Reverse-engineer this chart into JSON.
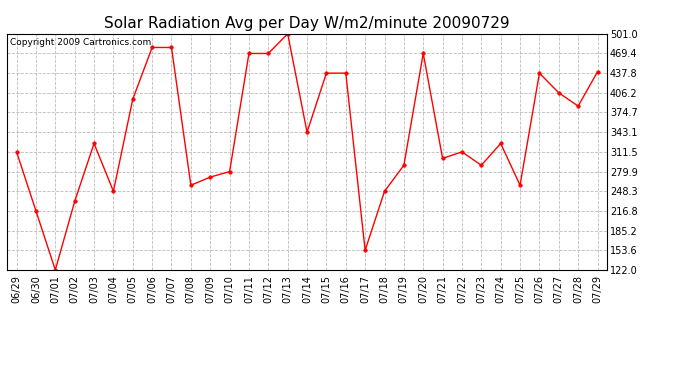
{
  "title": "Solar Radiation Avg per Day W/m2/minute 20090729",
  "copyright": "Copyright 2009 Cartronics.com",
  "dates": [
    "06/29",
    "06/30",
    "07/01",
    "07/02",
    "07/03",
    "07/04",
    "07/05",
    "07/06",
    "07/07",
    "07/08",
    "07/09",
    "07/10",
    "07/11",
    "07/12",
    "07/13",
    "07/14",
    "07/15",
    "07/16",
    "07/17",
    "07/18",
    "07/19",
    "07/20",
    "07/21",
    "07/22",
    "07/23",
    "07/24",
    "07/25",
    "07/26",
    "07/27",
    "07/28",
    "07/29"
  ],
  "values": [
    311.5,
    216.8,
    122.0,
    232.0,
    325.0,
    248.3,
    396.0,
    479.0,
    479.0,
    258.0,
    271.0,
    279.9,
    469.4,
    469.4,
    501.0,
    343.1,
    437.8,
    437.8,
    153.6,
    248.3,
    290.0,
    469.4,
    301.0,
    311.5,
    290.0,
    325.0,
    258.0,
    437.8,
    406.2,
    385.0,
    440.0
  ],
  "ylim": [
    122.0,
    501.0
  ],
  "yticks": [
    122.0,
    153.6,
    185.2,
    216.8,
    248.3,
    279.9,
    311.5,
    343.1,
    374.7,
    406.2,
    437.8,
    469.4,
    501.0
  ],
  "line_color": "#ff0000",
  "marker_color": "#ff0000",
  "bg_color": "#ffffff",
  "grid_color": "#bbbbbb",
  "title_fontsize": 11,
  "tick_fontsize": 7,
  "copyright_fontsize": 6.5
}
